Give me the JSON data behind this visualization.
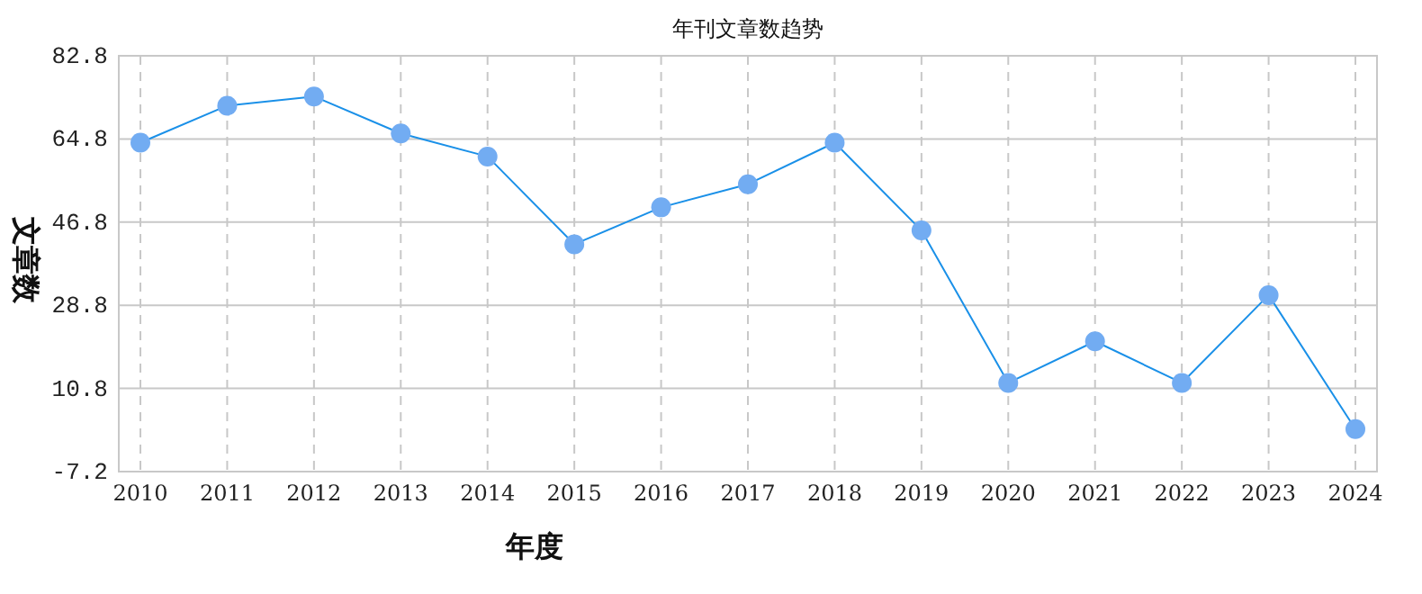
{
  "chart_data": {
    "type": "line",
    "title": "年刊文章数趋势",
    "xlabel": "年度",
    "ylabel": "文章数",
    "categories": [
      "2010",
      "2011",
      "2012",
      "2013",
      "2014",
      "2015",
      "2016",
      "2017",
      "2018",
      "2019",
      "2020",
      "2021",
      "2022",
      "2023",
      "2024"
    ],
    "series": [
      {
        "color": "#1a90e8",
        "values": [
          64,
          72,
          74,
          66,
          61,
          42,
          50,
          55,
          64,
          45,
          12,
          21,
          12,
          31,
          2
        ]
      }
    ],
    "ylim": [
      -7.2,
      82.8
    ],
    "yticks": [
      -7.2,
      10.8,
      28.8,
      46.8,
      64.8,
      82.8
    ],
    "grid": true,
    "marker": "circle",
    "line_style": "solid"
  }
}
